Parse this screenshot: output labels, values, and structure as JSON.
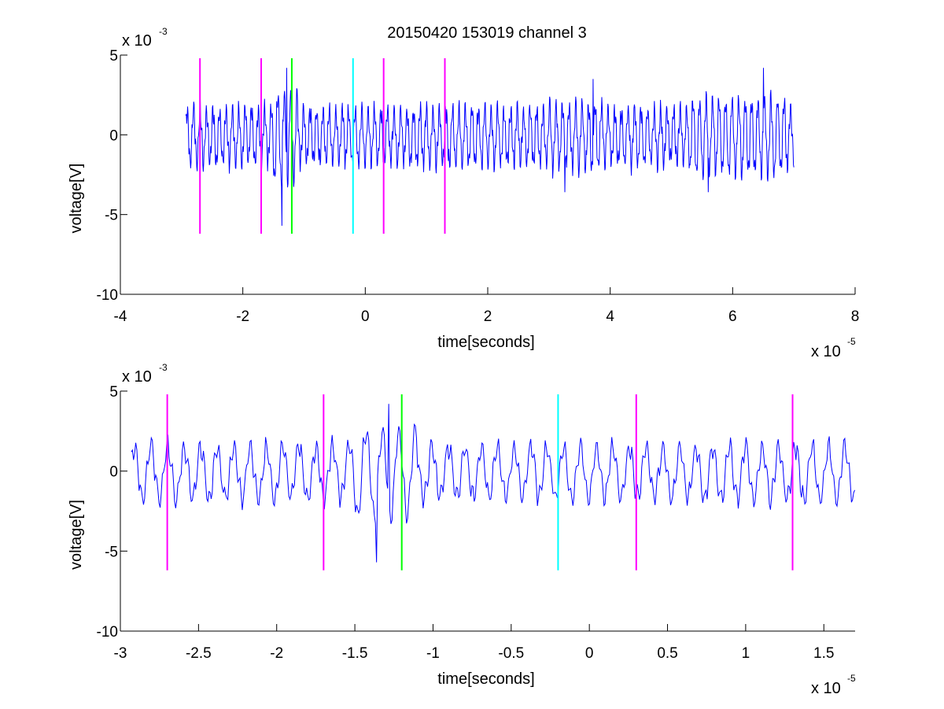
{
  "figure": {
    "title": "20150420 153019 channel 3"
  },
  "chart_data": [
    {
      "type": "line",
      "title": "20150420 153019 channel 3",
      "xlabel": "time[seconds]",
      "ylabel": "voltage[V]",
      "x_multiplier": {
        "base": "x 10",
        "exp": "-5"
      },
      "y_multiplier": {
        "base": "x 10",
        "exp": "-3"
      },
      "xlim": [
        -4,
        8
      ],
      "ylim": [
        -10,
        5
      ],
      "x_ticks": [
        -4,
        -2,
        0,
        2,
        4,
        6,
        8
      ],
      "x_tick_labels": [
        "-4",
        "-2",
        "0",
        "2",
        "4",
        "6",
        "8"
      ],
      "y_ticks": [
        -10,
        -5,
        0,
        5
      ],
      "y_tick_labels": [
        "-10",
        "-5",
        "0",
        "5"
      ],
      "grid": false,
      "series": [
        {
          "color": "#0000ff",
          "x_range": [
            -2.93,
            7.0
          ],
          "amplitude_approx": 2.5,
          "min_approx": -5.7,
          "max_approx": 4.2
        }
      ],
      "vlines": [
        {
          "x": -2.7,
          "color": "#ff00ff",
          "y_range": [
            -6.2,
            4.8
          ]
        },
        {
          "x": -1.7,
          "color": "#ff00ff",
          "y_range": [
            -6.2,
            4.8
          ]
        },
        {
          "x": -1.2,
          "color": "#00ff00",
          "y_range": [
            -6.2,
            4.8
          ]
        },
        {
          "x": -0.2,
          "color": "#00ffff",
          "y_range": [
            -6.2,
            4.8
          ]
        },
        {
          "x": 0.3,
          "color": "#ff00ff",
          "y_range": [
            -6.2,
            4.8
          ]
        },
        {
          "x": 1.3,
          "color": "#ff00ff",
          "y_range": [
            -6.2,
            4.8
          ]
        }
      ]
    },
    {
      "type": "line",
      "title": "",
      "xlabel": "time[seconds]",
      "ylabel": "voltage[V]",
      "x_multiplier": {
        "base": "x 10",
        "exp": "-5"
      },
      "y_multiplier": {
        "base": "x 10",
        "exp": "-3"
      },
      "xlim": [
        -3.0,
        1.7
      ],
      "ylim": [
        -10,
        5
      ],
      "x_ticks": [
        -3,
        -2.5,
        -2,
        -1.5,
        -1,
        -0.5,
        0,
        0.5,
        1,
        1.5
      ],
      "x_tick_labels": [
        "-3",
        "-2.5",
        "-2",
        "-1.5",
        "-1",
        "-0.5",
        "0",
        "0.5",
        "1",
        "1.5"
      ],
      "y_ticks": [
        -10,
        -5,
        0,
        5
      ],
      "y_tick_labels": [
        "-10",
        "-5",
        "0",
        "5"
      ],
      "grid": false,
      "series": [
        {
          "color": "#0000ff",
          "x_range": [
            -2.93,
            1.7
          ],
          "amplitude_approx": 2.5,
          "min_approx": -5.7,
          "max_approx": 4.2
        }
      ],
      "vlines": [
        {
          "x": -2.7,
          "color": "#ff00ff",
          "y_range": [
            -6.2,
            4.8
          ]
        },
        {
          "x": -1.7,
          "color": "#ff00ff",
          "y_range": [
            -6.2,
            4.8
          ]
        },
        {
          "x": -1.2,
          "color": "#00ff00",
          "y_range": [
            -6.2,
            4.8
          ]
        },
        {
          "x": -0.2,
          "color": "#00ffff",
          "y_range": [
            -6.2,
            4.8
          ]
        },
        {
          "x": 0.3,
          "color": "#ff00ff",
          "y_range": [
            -6.2,
            4.8
          ]
        },
        {
          "x": 1.3,
          "color": "#ff00ff",
          "y_range": [
            -6.2,
            4.8
          ]
        }
      ]
    }
  ]
}
